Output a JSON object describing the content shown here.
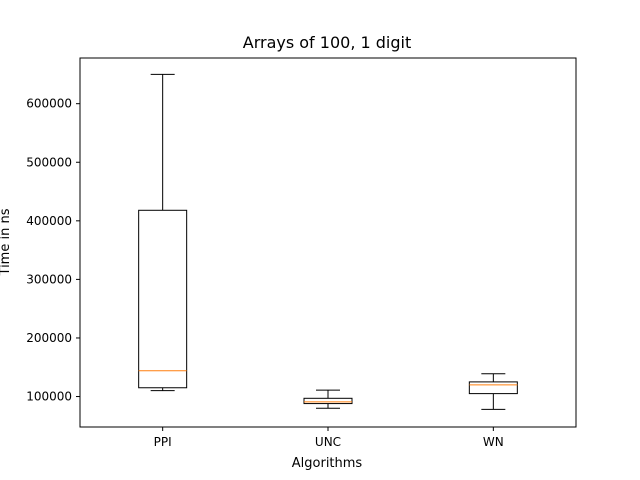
{
  "chart_data": {
    "type": "box",
    "title": "Arrays of 100, 1 digit",
    "xlabel": "Algorithms",
    "ylabel": "Time in ns",
    "categories": [
      "PPI",
      "UNC",
      "WN"
    ],
    "ylim": [
      48000,
      678000
    ],
    "yticks": [
      100000,
      200000,
      300000,
      400000,
      500000,
      600000
    ],
    "ytick_labels": [
      "100000",
      "200000",
      "300000",
      "400000",
      "500000",
      "600000"
    ],
    "grid": false,
    "series": [
      {
        "category": "PPI",
        "whisker_low": 110000,
        "q1": 115000,
        "median": 144000,
        "q3": 418000,
        "whisker_high": 650000
      },
      {
        "category": "UNC",
        "whisker_low": 80000,
        "q1": 88000,
        "median": 91000,
        "q3": 97000,
        "whisker_high": 111000
      },
      {
        "category": "WN",
        "whisker_low": 78000,
        "q1": 105000,
        "median": 120000,
        "q3": 125000,
        "whisker_high": 139000
      }
    ],
    "colors": {
      "box": "#000000",
      "median": "#ff7f0e",
      "axes": "#000000"
    }
  }
}
